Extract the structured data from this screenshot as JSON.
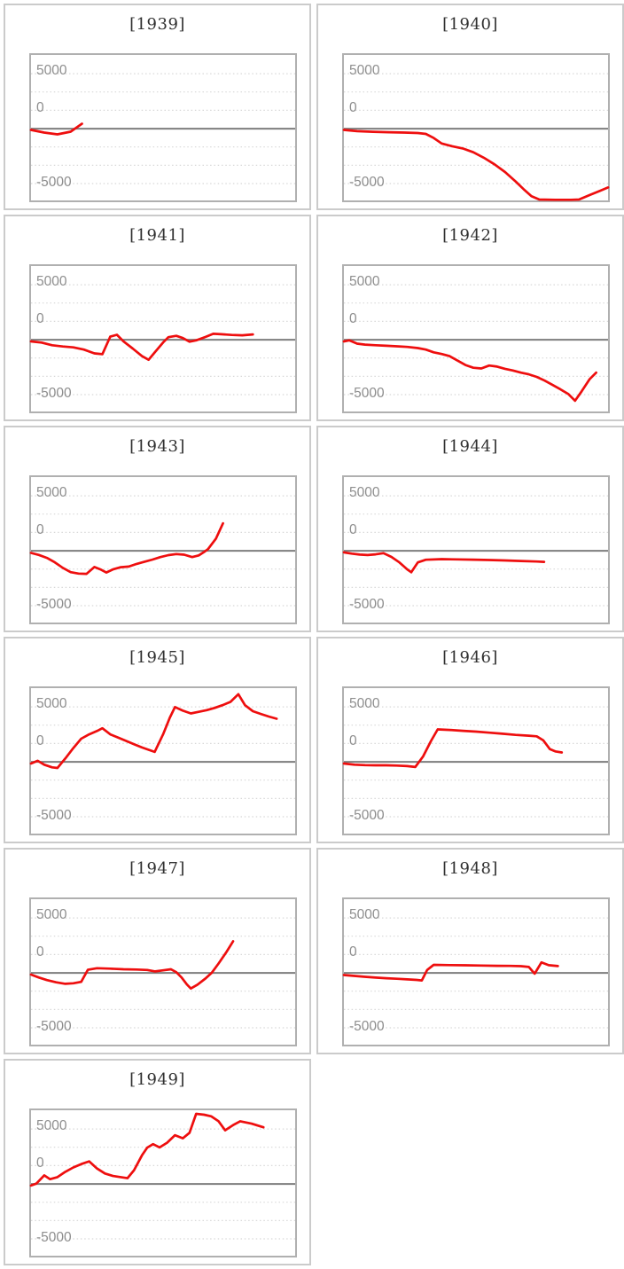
{
  "page": {
    "background": "#ffffff"
  },
  "chart_data": {
    "type": "line",
    "layout": "small-multiples, 2 columns, one panel per year",
    "x": "fraction of panel width (no x-axis tick labels shown in image)",
    "ylim": [
      -6530,
      6700
    ],
    "yticks": [
      {
        "label": "5000",
        "value": 5000,
        "dy": 1
      },
      {
        "label": "0",
        "value": 0,
        "dy": -19
      },
      {
        "label": "-5000",
        "value": -5000,
        "dy": 3
      }
    ],
    "gridline_values": [
      5000,
      3333,
      1667,
      -1667,
      -3333,
      -5000
    ],
    "grid_style": "dotted",
    "zero_line_value": 0,
    "series_color": "#ee0e0e",
    "zero_line_color": "#7d7d7d",
    "grid_color": "#d8d8d8",
    "tick_label_color": "#8e8e8e",
    "title_color": "#303030",
    "panel_border_color": "#cbcbcb",
    "plot_border_color": "#b0b0b0",
    "panels": [
      {
        "title": "[1939]",
        "points": [
          [
            0,
            -120
          ],
          [
            0.05,
            -360
          ],
          [
            0.1,
            -520
          ],
          [
            0.15,
            -280
          ],
          [
            0.193,
            450
          ]
        ]
      },
      {
        "title": "[1940]",
        "points": [
          [
            0,
            -120
          ],
          [
            0.05,
            -230
          ],
          [
            0.11,
            -290
          ],
          [
            0.17,
            -330
          ],
          [
            0.23,
            -360
          ],
          [
            0.28,
            -400
          ],
          [
            0.31,
            -480
          ],
          [
            0.34,
            -850
          ],
          [
            0.37,
            -1350
          ],
          [
            0.41,
            -1600
          ],
          [
            0.45,
            -1800
          ],
          [
            0.49,
            -2150
          ],
          [
            0.53,
            -2650
          ],
          [
            0.57,
            -3250
          ],
          [
            0.61,
            -3950
          ],
          [
            0.65,
            -4800
          ],
          [
            0.68,
            -5500
          ],
          [
            0.71,
            -6150
          ],
          [
            0.74,
            -6450
          ],
          [
            0.8,
            -6470
          ],
          [
            0.86,
            -6470
          ],
          [
            0.89,
            -6450
          ],
          [
            0.93,
            -6050
          ],
          [
            0.97,
            -5650
          ],
          [
            1.0,
            -5350
          ]
        ]
      },
      {
        "title": "[1941]",
        "points": [
          [
            0,
            -160
          ],
          [
            0.04,
            -260
          ],
          [
            0.08,
            -500
          ],
          [
            0.12,
            -620
          ],
          [
            0.16,
            -700
          ],
          [
            0.2,
            -900
          ],
          [
            0.24,
            -1250
          ],
          [
            0.27,
            -1320
          ],
          [
            0.3,
            280
          ],
          [
            0.325,
            450
          ],
          [
            0.35,
            -150
          ],
          [
            0.385,
            -800
          ],
          [
            0.42,
            -1500
          ],
          [
            0.445,
            -1830
          ],
          [
            0.47,
            -1100
          ],
          [
            0.5,
            -250
          ],
          [
            0.52,
            230
          ],
          [
            0.55,
            350
          ],
          [
            0.575,
            150
          ],
          [
            0.6,
            -180
          ],
          [
            0.625,
            -60
          ],
          [
            0.66,
            250
          ],
          [
            0.69,
            540
          ],
          [
            0.72,
            500
          ],
          [
            0.76,
            430
          ],
          [
            0.8,
            400
          ],
          [
            0.84,
            480
          ]
        ]
      },
      {
        "title": "[1942]",
        "points": [
          [
            0,
            -160
          ],
          [
            0.02,
            -60
          ],
          [
            0.05,
            -360
          ],
          [
            0.08,
            -450
          ],
          [
            0.12,
            -500
          ],
          [
            0.16,
            -550
          ],
          [
            0.2,
            -600
          ],
          [
            0.24,
            -660
          ],
          [
            0.28,
            -760
          ],
          [
            0.31,
            -900
          ],
          [
            0.34,
            -1150
          ],
          [
            0.37,
            -1300
          ],
          [
            0.4,
            -1500
          ],
          [
            0.43,
            -1900
          ],
          [
            0.46,
            -2300
          ],
          [
            0.49,
            -2550
          ],
          [
            0.52,
            -2620
          ],
          [
            0.55,
            -2350
          ],
          [
            0.58,
            -2450
          ],
          [
            0.61,
            -2650
          ],
          [
            0.64,
            -2800
          ],
          [
            0.67,
            -3000
          ],
          [
            0.7,
            -3150
          ],
          [
            0.73,
            -3380
          ],
          [
            0.76,
            -3720
          ],
          [
            0.79,
            -4120
          ],
          [
            0.82,
            -4520
          ],
          [
            0.85,
            -4950
          ],
          [
            0.875,
            -5550
          ],
          [
            0.9,
            -4700
          ],
          [
            0.93,
            -3600
          ],
          [
            0.955,
            -3000
          ]
        ]
      },
      {
        "title": "[1943]",
        "points": [
          [
            0,
            -200
          ],
          [
            0.03,
            -380
          ],
          [
            0.06,
            -650
          ],
          [
            0.09,
            -1050
          ],
          [
            0.12,
            -1550
          ],
          [
            0.15,
            -1950
          ],
          [
            0.18,
            -2080
          ],
          [
            0.21,
            -2100
          ],
          [
            0.24,
            -1480
          ],
          [
            0.265,
            -1720
          ],
          [
            0.285,
            -1980
          ],
          [
            0.31,
            -1700
          ],
          [
            0.34,
            -1500
          ],
          [
            0.37,
            -1440
          ],
          [
            0.4,
            -1200
          ],
          [
            0.43,
            -1000
          ],
          [
            0.46,
            -800
          ],
          [
            0.49,
            -580
          ],
          [
            0.52,
            -400
          ],
          [
            0.55,
            -300
          ],
          [
            0.58,
            -360
          ],
          [
            0.61,
            -580
          ],
          [
            0.635,
            -420
          ],
          [
            0.655,
            -120
          ],
          [
            0.67,
            150
          ],
          [
            0.7,
            1100
          ],
          [
            0.727,
            2500
          ]
        ]
      },
      {
        "title": "[1944]",
        "points": [
          [
            0,
            -150
          ],
          [
            0.03,
            -260
          ],
          [
            0.06,
            -350
          ],
          [
            0.09,
            -390
          ],
          [
            0.12,
            -330
          ],
          [
            0.15,
            -220
          ],
          [
            0.18,
            -560
          ],
          [
            0.21,
            -1060
          ],
          [
            0.24,
            -1700
          ],
          [
            0.255,
            -1960
          ],
          [
            0.28,
            -1060
          ],
          [
            0.31,
            -820
          ],
          [
            0.37,
            -760
          ],
          [
            0.43,
            -790
          ],
          [
            0.49,
            -810
          ],
          [
            0.55,
            -840
          ],
          [
            0.61,
            -880
          ],
          [
            0.67,
            -930
          ],
          [
            0.73,
            -980
          ],
          [
            0.758,
            -1010
          ]
        ]
      },
      {
        "title": "[1945]",
        "points": [
          [
            0,
            -160
          ],
          [
            0.025,
            90
          ],
          [
            0.05,
            -260
          ],
          [
            0.08,
            -500
          ],
          [
            0.1,
            -560
          ],
          [
            0.13,
            300
          ],
          [
            0.16,
            1250
          ],
          [
            0.19,
            2100
          ],
          [
            0.22,
            2500
          ],
          [
            0.25,
            2800
          ],
          [
            0.27,
            3050
          ],
          [
            0.3,
            2500
          ],
          [
            0.33,
            2200
          ],
          [
            0.36,
            1900
          ],
          [
            0.39,
            1600
          ],
          [
            0.42,
            1300
          ],
          [
            0.45,
            1050
          ],
          [
            0.468,
            900
          ],
          [
            0.5,
            2500
          ],
          [
            0.525,
            4000
          ],
          [
            0.545,
            4980
          ],
          [
            0.575,
            4650
          ],
          [
            0.605,
            4400
          ],
          [
            0.635,
            4550
          ],
          [
            0.665,
            4700
          ],
          [
            0.695,
            4900
          ],
          [
            0.725,
            5150
          ],
          [
            0.755,
            5450
          ],
          [
            0.785,
            6150
          ],
          [
            0.81,
            5150
          ],
          [
            0.84,
            4600
          ],
          [
            0.87,
            4350
          ],
          [
            0.9,
            4120
          ],
          [
            0.93,
            3920
          ]
        ]
      },
      {
        "title": "[1946]",
        "points": [
          [
            0,
            -160
          ],
          [
            0.04,
            -260
          ],
          [
            0.08,
            -300
          ],
          [
            0.12,
            -320
          ],
          [
            0.16,
            -320
          ],
          [
            0.2,
            -340
          ],
          [
            0.24,
            -390
          ],
          [
            0.27,
            -470
          ],
          [
            0.3,
            500
          ],
          [
            0.33,
            1900
          ],
          [
            0.355,
            2950
          ],
          [
            0.4,
            2900
          ],
          [
            0.45,
            2820
          ],
          [
            0.5,
            2750
          ],
          [
            0.55,
            2650
          ],
          [
            0.6,
            2550
          ],
          [
            0.65,
            2450
          ],
          [
            0.7,
            2380
          ],
          [
            0.73,
            2320
          ],
          [
            0.755,
            1950
          ],
          [
            0.78,
            1150
          ],
          [
            0.8,
            950
          ],
          [
            0.825,
            850
          ]
        ]
      },
      {
        "title": "[1947]",
        "points": [
          [
            0,
            -160
          ],
          [
            0.03,
            -420
          ],
          [
            0.06,
            -660
          ],
          [
            0.095,
            -860
          ],
          [
            0.13,
            -1000
          ],
          [
            0.16,
            -950
          ],
          [
            0.19,
            -820
          ],
          [
            0.215,
            280
          ],
          [
            0.25,
            420
          ],
          [
            0.3,
            380
          ],
          [
            0.35,
            330
          ],
          [
            0.4,
            300
          ],
          [
            0.44,
            260
          ],
          [
            0.47,
            130
          ],
          [
            0.5,
            230
          ],
          [
            0.53,
            330
          ],
          [
            0.55,
            60
          ],
          [
            0.57,
            -420
          ],
          [
            0.59,
            -1050
          ],
          [
            0.605,
            -1420
          ],
          [
            0.63,
            -1080
          ],
          [
            0.66,
            -520
          ],
          [
            0.685,
            30
          ],
          [
            0.71,
            850
          ],
          [
            0.74,
            1900
          ],
          [
            0.765,
            2880
          ]
        ]
      },
      {
        "title": "[1948]",
        "points": [
          [
            0,
            -200
          ],
          [
            0.04,
            -280
          ],
          [
            0.08,
            -360
          ],
          [
            0.12,
            -430
          ],
          [
            0.16,
            -490
          ],
          [
            0.2,
            -540
          ],
          [
            0.24,
            -590
          ],
          [
            0.275,
            -640
          ],
          [
            0.295,
            -690
          ],
          [
            0.315,
            260
          ],
          [
            0.34,
            730
          ],
          [
            0.4,
            710
          ],
          [
            0.46,
            690
          ],
          [
            0.52,
            665
          ],
          [
            0.58,
            645
          ],
          [
            0.63,
            630
          ],
          [
            0.67,
            610
          ],
          [
            0.7,
            540
          ],
          [
            0.722,
            -80
          ],
          [
            0.748,
            960
          ],
          [
            0.775,
            700
          ],
          [
            0.81,
            620
          ]
        ]
      },
      {
        "title": "[1949]",
        "points": [
          [
            0,
            -150
          ],
          [
            0.02,
            30
          ],
          [
            0.05,
            780
          ],
          [
            0.072,
            430
          ],
          [
            0.1,
            620
          ],
          [
            0.13,
            1100
          ],
          [
            0.16,
            1500
          ],
          [
            0.19,
            1800
          ],
          [
            0.22,
            2050
          ],
          [
            0.25,
            1400
          ],
          [
            0.28,
            950
          ],
          [
            0.31,
            720
          ],
          [
            0.34,
            620
          ],
          [
            0.365,
            520
          ],
          [
            0.39,
            1250
          ],
          [
            0.42,
            2600
          ],
          [
            0.44,
            3300
          ],
          [
            0.462,
            3620
          ],
          [
            0.487,
            3320
          ],
          [
            0.515,
            3750
          ],
          [
            0.545,
            4430
          ],
          [
            0.575,
            4150
          ],
          [
            0.6,
            4650
          ],
          [
            0.625,
            6380
          ],
          [
            0.655,
            6300
          ],
          [
            0.682,
            6150
          ],
          [
            0.71,
            5700
          ],
          [
            0.735,
            4880
          ],
          [
            0.765,
            5350
          ],
          [
            0.792,
            5700
          ],
          [
            0.835,
            5480
          ],
          [
            0.88,
            5150
          ]
        ]
      }
    ]
  }
}
